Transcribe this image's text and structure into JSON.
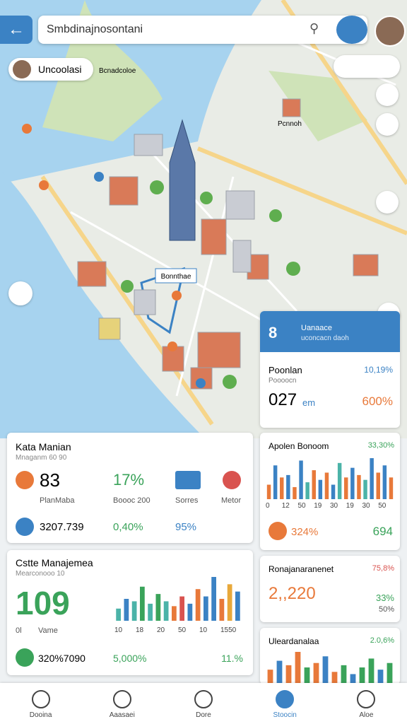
{
  "search_placeholder": "Smbdinajnosontani",
  "location_chip": "Uncoolasi",
  "map_labels": [
    "Bcnadcoloe",
    "Pcnnoh",
    "Bonnthae"
  ],
  "map_card": {
    "badge": "8",
    "title": "Uanaace",
    "subtitle": "uconcacn daoh",
    "label": "Poonlan",
    "change": "10,19%",
    "sublabel": "Poooocn",
    "value": "027",
    "unit": "em",
    "percent": "600%"
  },
  "kata_card": {
    "title": "Kata Manian",
    "subtitle": "Mnaganm 60 90",
    "value": "83",
    "value_label": "PlanMaba",
    "percent": "17%",
    "percent_label": "Boooc 200",
    "icon_label": "Sorres",
    "icon2_label": "Metor",
    "row": [
      "3207.739",
      "0,40%",
      "95%"
    ]
  },
  "apolen_card": {
    "title": "Apolen Bonoom",
    "change": "33,30%",
    "chart": {
      "values": [
        30,
        70,
        45,
        50,
        25,
        80,
        35,
        60,
        40,
        55,
        30,
        75,
        45,
        65,
        50,
        40,
        85,
        55,
        70,
        45
      ],
      "colors": [
        "#e8793a",
        "#3b82c4",
        "#e8793a",
        "#3b82c4",
        "#e8793a",
        "#3b82c4",
        "#4bb3a8",
        "#e8793a",
        "#3b82c4",
        "#e8793a",
        "#3b82c4",
        "#4bb3a8",
        "#e8793a",
        "#3b82c4",
        "#e8793a",
        "#4bb3a8",
        "#3b82c4",
        "#e8793a",
        "#3b82c4",
        "#e8793a"
      ]
    },
    "xlabels": [
      "0",
      "12",
      "50",
      "19",
      "30",
      "19",
      "30",
      "50"
    ],
    "footer": [
      "324%",
      "694"
    ]
  },
  "cstte_card": {
    "title": "Cstte Manajemea",
    "subtitle": "Mearconooo 10",
    "value": "109",
    "value_label": "Vame",
    "corner_label": "0l",
    "chart": {
      "values": [
        25,
        45,
        40,
        70,
        35,
        55,
        40,
        30,
        50,
        35,
        65,
        50,
        90,
        45,
        75,
        60
      ],
      "colors": [
        "#4bb3a8",
        "#3b82c4",
        "#4bb3a8",
        "#3aa35a",
        "#4bb3a8",
        "#3aa35a",
        "#4bb3a8",
        "#e8793a",
        "#d9534f",
        "#3b82c4",
        "#e8793a",
        "#3b82c4",
        "#3b82c4",
        "#e8793a",
        "#e8a83a",
        "#3b82c4"
      ]
    },
    "xlabels": [
      "10",
      "18",
      "20",
      "50",
      "10",
      "1550"
    ],
    "footer": [
      "320%7090",
      "5,000%",
      "11.%"
    ]
  },
  "rona_card": {
    "title": "Ronajanaranenet",
    "change": "75,8%",
    "value": "2,,220",
    "side": [
      "33%",
      "50%"
    ]
  },
  "ulea_card": {
    "title": "Uleardanalaa",
    "change": "2.0,6%",
    "chart": {
      "values": [
        30,
        50,
        40,
        70,
        35,
        45,
        60,
        25,
        40,
        20,
        35,
        55,
        30,
        45
      ],
      "colors": [
        "#e8793a",
        "#3b82c4",
        "#e8793a",
        "#e8793a",
        "#3aa35a",
        "#e8793a",
        "#3b82c4",
        "#e8793a",
        "#3aa35a",
        "#3b82c4",
        "#3aa35a",
        "#3aa35a",
        "#3b82c4",
        "#3aa35a"
      ]
    }
  },
  "nav": [
    "Dooina",
    "Aaasaei",
    "Dore",
    "Stoocin",
    "Aloe"
  ]
}
